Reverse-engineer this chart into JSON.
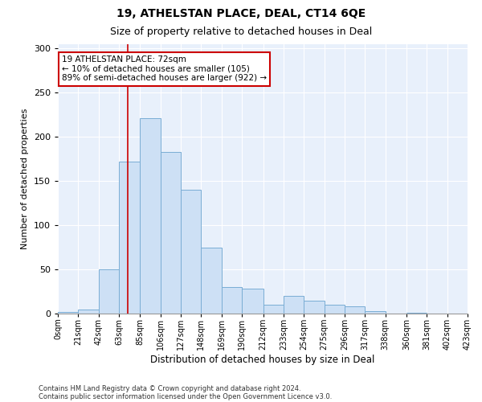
{
  "title": "19, ATHELSTAN PLACE, DEAL, CT14 6QE",
  "subtitle": "Size of property relative to detached houses in Deal",
  "xlabel": "Distribution of detached houses by size in Deal",
  "ylabel": "Number of detached properties",
  "footnote1": "Contains HM Land Registry data © Crown copyright and database right 2024.",
  "footnote2": "Contains public sector information licensed under the Open Government Licence v3.0.",
  "annotation_line1": "19 ATHELSTAN PLACE: 72sqm",
  "annotation_line2": "← 10% of detached houses are smaller (105)",
  "annotation_line3": "89% of semi-detached houses are larger (922) →",
  "bar_color": "#cde0f5",
  "bar_edge_color": "#7aadd4",
  "vertical_line_color": "#cc0000",
  "vertical_line_x": 72,
  "annotation_box_edge_color": "#cc0000",
  "bin_edges": [
    0,
    21,
    42,
    63,
    85,
    106,
    127,
    148,
    169,
    190,
    212,
    233,
    254,
    275,
    296,
    317,
    338,
    360,
    381,
    402,
    423
  ],
  "bar_heights": [
    2,
    5,
    50,
    172,
    221,
    183,
    140,
    75,
    30,
    28,
    10,
    20,
    15,
    10,
    8,
    3,
    0,
    1,
    0,
    0
  ],
  "ylim": [
    0,
    305
  ],
  "yticks": [
    0,
    50,
    100,
    150,
    200,
    250,
    300
  ],
  "plot_bg_color": "#e8f0fb"
}
